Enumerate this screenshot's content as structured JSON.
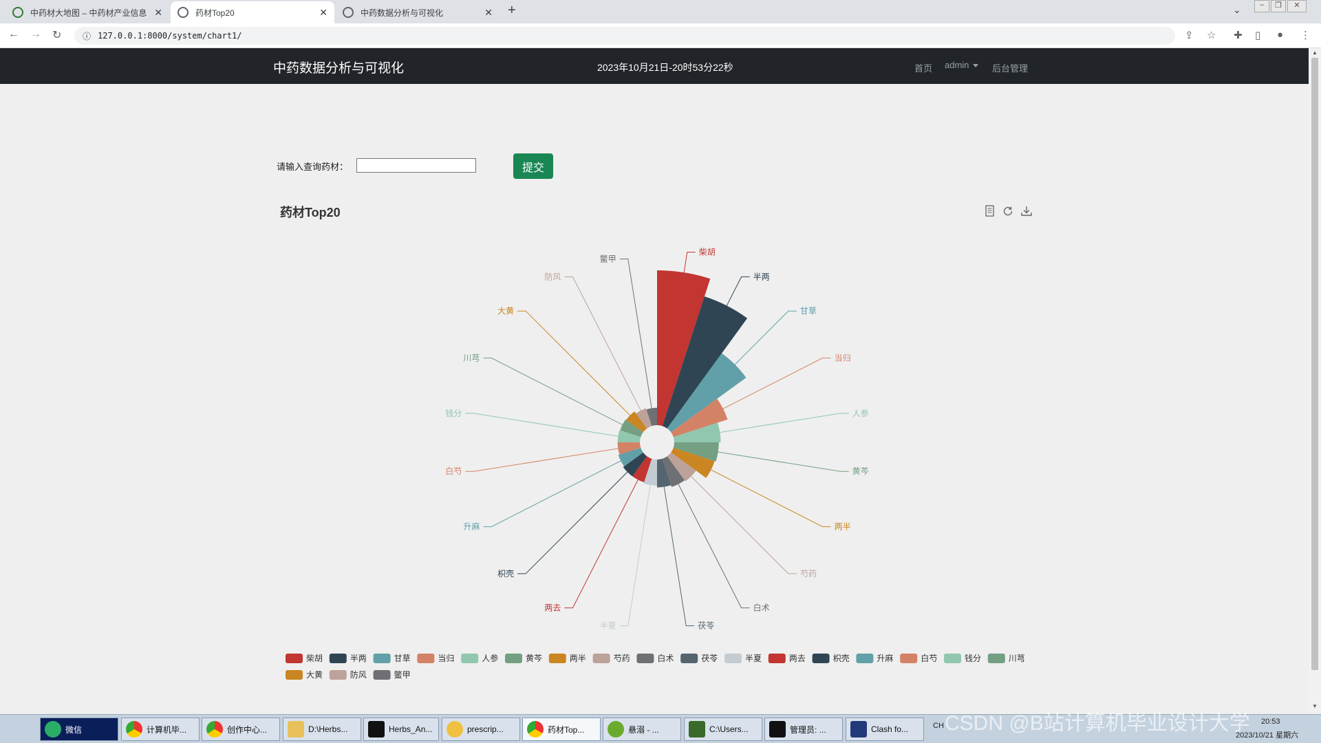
{
  "browser": {
    "tabs": [
      {
        "label": "中药材大地图 – 中药材产业信息",
        "active": false
      },
      {
        "label": "药材Top20",
        "active": true
      },
      {
        "label": "中药数据分析与可视化",
        "active": false
      }
    ],
    "url": "127.0.0.1:8000/system/chart1/"
  },
  "navbar": {
    "brand": "中药数据分析与可视化",
    "datetime": "2023年10月21日-20时53分22秒",
    "links": {
      "home": "首页",
      "user": "admin",
      "admin": "后台管理"
    }
  },
  "query": {
    "label": "请输入查询药材：",
    "value": "",
    "submit": "提交"
  },
  "chart_data": {
    "type": "pie",
    "variant": "nightingale-rose",
    "title": "药材Top20",
    "categories": [
      "柴胡",
      "半两",
      "甘草",
      "当归",
      "人参",
      "黄芩",
      "两半",
      "芍药",
      "白术",
      "茯苓",
      "半夏",
      "两去",
      "枳壳",
      "升麻",
      "白芍",
      "钱分",
      "川芎",
      "大黄",
      "防风",
      "鳖甲"
    ],
    "values": [
      250,
      220,
      150,
      92,
      75,
      72,
      70,
      50,
      48,
      45,
      42,
      40,
      40,
      38,
      36,
      36,
      35,
      34,
      30,
      28
    ],
    "colors": [
      "#c23531",
      "#2f4554",
      "#61a0a8",
      "#d48265",
      "#91c7ae",
      "#749f83",
      "#ca8622",
      "#bda29a",
      "#6e7074",
      "#546570",
      "#c4ccd3",
      "#c23531",
      "#2f4554",
      "#61a0a8",
      "#d48265",
      "#91c7ae",
      "#749f83",
      "#ca8622",
      "#bda29a",
      "#6e7074"
    ],
    "legend_position": "bottom",
    "toolbox": [
      "data-view-icon",
      "restore-icon",
      "save-image-icon"
    ]
  },
  "taskbar": {
    "items": [
      "微信",
      "计算机毕...",
      "创作中心...",
      "D:\\Herbs...",
      "Herbs_An...",
      "prescrip...",
      "药材Top...",
      "悬溺 - ...",
      "C:\\Users...",
      "管理员: ...",
      "Clash fo..."
    ],
    "lang": "CH",
    "time": "20:53",
    "date": "2023/10/21 星期六"
  },
  "watermark": "CSDN @B站计算机毕业设计大学"
}
